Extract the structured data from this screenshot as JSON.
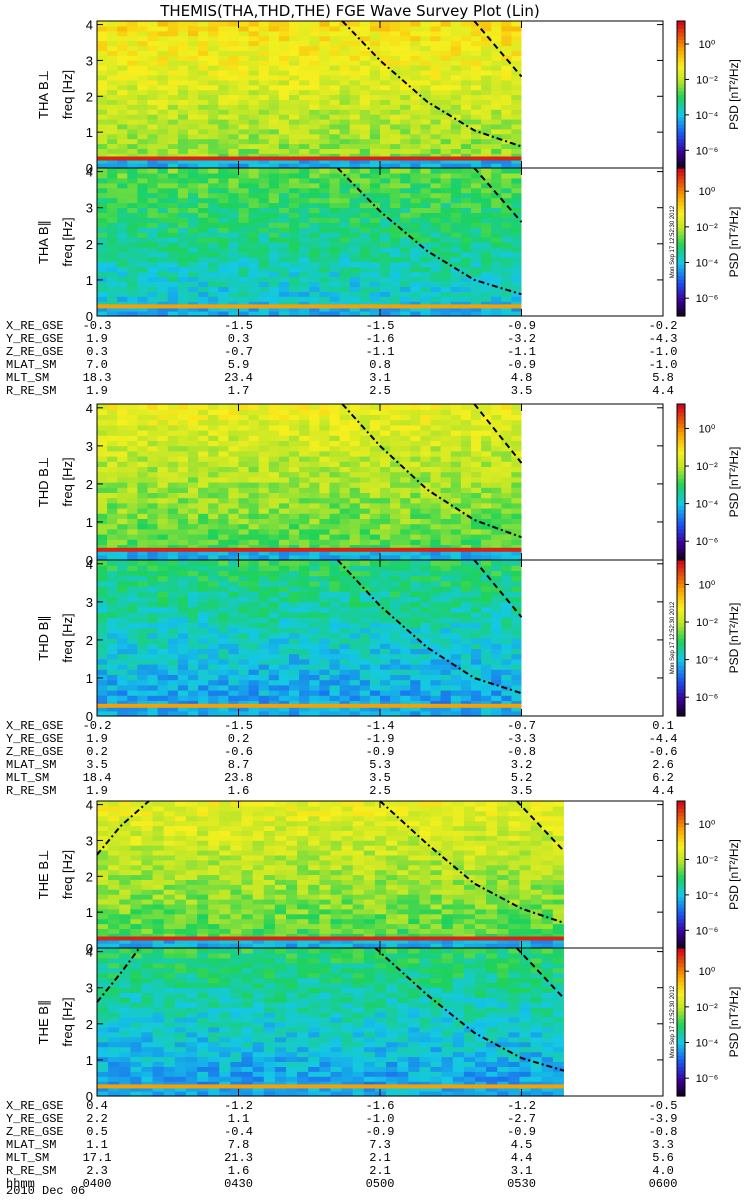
{
  "title": "THEMIS(THA,THD,THE) FGE Wave Survey Plot (Lin)",
  "colors": {
    "low": "#1e5ef0",
    "mid": "#18d060",
    "yellow": "#f4f01c",
    "orange": "#f8a000",
    "high": "#d0101c"
  },
  "timestamp": "Mon Sep 17 12:52:30 2012",
  "chart_data": {
    "type": "heatmap",
    "x_ticks": [
      "0400",
      "0430",
      "0500",
      "0530",
      "0600"
    ],
    "x_tick_values_min": [
      0,
      30,
      60,
      90,
      120
    ],
    "freq_ylim": [
      0,
      4.1
    ],
    "freq_ticks": [
      "0",
      "1",
      "2",
      "3",
      "4"
    ],
    "colorbar": {
      "label": "PSD [nT²/Hz]",
      "ticks": [
        "10⁰",
        "10⁻²",
        "10⁻⁴",
        "10⁻⁶"
      ],
      "tick_log_values": [
        0,
        -2,
        -4,
        -6
      ],
      "log_range": [
        -7,
        1.3
      ]
    },
    "panels": [
      {
        "probe": "THA",
        "component": "B⊥",
        "ylabel": "freq [Hz]",
        "data_end_min": 90,
        "line_band": "bright",
        "level": 0.55,
        "dash_dot_curve": [
          [
            52,
            4.1
          ],
          [
            60,
            3.0
          ],
          [
            70,
            1.85
          ],
          [
            80,
            1.05
          ],
          [
            90,
            0.6
          ]
        ],
        "dashed_curve": [
          [
            80,
            4.1
          ],
          [
            90,
            2.55
          ]
        ]
      },
      {
        "probe": "THA",
        "component": "B∥",
        "ylabel": "freq [Hz]",
        "data_end_min": 90,
        "line_band": "orange",
        "level": 0.35,
        "dash_dot_curve": [
          [
            51,
            4.1
          ],
          [
            60,
            2.9
          ],
          [
            70,
            1.8
          ],
          [
            80,
            1.0
          ],
          [
            90,
            0.6
          ]
        ],
        "dashed_curve": [
          [
            80,
            4.1
          ],
          [
            90,
            2.6
          ]
        ]
      },
      {
        "probe": "THD",
        "component": "B⊥",
        "ylabel": "freq [Hz]",
        "data_end_min": 90,
        "line_band": "bright",
        "level": 0.5,
        "dash_dot_curve": [
          [
            52,
            4.1
          ],
          [
            60,
            3.0
          ],
          [
            70,
            1.85
          ],
          [
            80,
            1.05
          ],
          [
            90,
            0.6
          ]
        ],
        "dashed_curve": [
          [
            80,
            4.1
          ],
          [
            90,
            2.55
          ]
        ]
      },
      {
        "probe": "THD",
        "component": "B∥",
        "ylabel": "freq [Hz]",
        "data_end_min": 90,
        "line_band": "orange",
        "level": 0.3,
        "dash_dot_curve": [
          [
            51,
            4.1
          ],
          [
            60,
            2.9
          ],
          [
            70,
            1.8
          ],
          [
            80,
            1.0
          ],
          [
            90,
            0.6
          ]
        ],
        "dashed_curve": [
          [
            80,
            4.1
          ],
          [
            90,
            2.6
          ]
        ]
      },
      {
        "probe": "THE",
        "component": "B⊥",
        "ylabel": "freq [Hz]",
        "data_end_min": 99,
        "line_band": "bright",
        "level": 0.5,
        "rising_curve": [
          [
            0,
            2.6
          ],
          [
            5,
            3.4
          ],
          [
            11,
            4.1
          ]
        ],
        "dash_dot_curve": [
          [
            60,
            4.1
          ],
          [
            70,
            2.9
          ],
          [
            80,
            1.8
          ],
          [
            90,
            1.1
          ],
          [
            99,
            0.7
          ]
        ],
        "dashed_curve": [
          [
            89,
            4.1
          ],
          [
            99,
            2.7
          ]
        ]
      },
      {
        "probe": "THE",
        "component": "B∥",
        "ylabel": "freq [Hz]",
        "data_end_min": 99,
        "line_band": "orange",
        "level": 0.3,
        "rising_curve": [
          [
            0,
            2.6
          ],
          [
            5,
            3.4
          ],
          [
            9,
            4.1
          ]
        ],
        "dash_dot_curve": [
          [
            59,
            4.1
          ],
          [
            70,
            2.8
          ],
          [
            80,
            1.75
          ],
          [
            90,
            1.05
          ],
          [
            99,
            0.7
          ]
        ],
        "dashed_curve": [
          [
            89,
            4.1
          ],
          [
            99,
            2.7
          ]
        ]
      }
    ]
  },
  "annotations": [
    {
      "labels": [
        "X_RE_GSE",
        "Y_RE_GSE",
        "Z_RE_GSE",
        "MLAT_SM",
        "MLT_SM",
        "R_RE_SM"
      ],
      "columns": [
        [
          "-0.3",
          "1.9",
          "0.3",
          "7.0",
          "18.3",
          "1.9"
        ],
        [
          "-1.5",
          "0.3",
          "-0.7",
          "5.9",
          "23.4",
          "1.7"
        ],
        [
          "-1.5",
          "-1.6",
          "-1.1",
          "0.8",
          "3.1",
          "2.5"
        ],
        [
          "-0.9",
          "-3.2",
          "-1.1",
          "-0.9",
          "4.8",
          "3.5"
        ],
        [
          "-0.2",
          "-4.3",
          "-1.0",
          "-1.0",
          "5.8",
          "4.4"
        ]
      ]
    },
    {
      "labels": [
        "X_RE_GSE",
        "Y_RE_GSE",
        "Z_RE_GSE",
        "MLAT_SM",
        "MLT_SM",
        "R_RE_SM"
      ],
      "columns": [
        [
          "-0.2",
          "1.9",
          "0.2",
          "3.5",
          "18.4",
          "1.9"
        ],
        [
          "-1.5",
          "0.2",
          "-0.6",
          "8.7",
          "23.8",
          "1.6"
        ],
        [
          "-1.4",
          "-1.9",
          "-0.9",
          "5.3",
          "3.5",
          "2.5"
        ],
        [
          "-0.7",
          "-3.3",
          "-0.8",
          "3.2",
          "5.2",
          "3.5"
        ],
        [
          "0.1",
          "-4.4",
          "-0.6",
          "2.6",
          "6.2",
          "4.4"
        ]
      ]
    },
    {
      "labels": [
        "X_RE_GSE",
        "Y_RE_GSE",
        "Z_RE_GSE",
        "MLAT_SM",
        "MLT_SM",
        "R_RE_SM",
        "hhmm"
      ],
      "columns": [
        [
          "0.4",
          "2.2",
          "0.5",
          "1.1",
          "17.1",
          "2.3",
          "0400"
        ],
        [
          "-1.2",
          "1.1",
          "-0.4",
          "7.8",
          "21.3",
          "1.6",
          "0430"
        ],
        [
          "-1.6",
          "-1.0",
          "-0.9",
          "7.3",
          "2.1",
          "2.1",
          "0500"
        ],
        [
          "-1.2",
          "-2.7",
          "-0.9",
          "4.5",
          "4.4",
          "3.1",
          "0530"
        ],
        [
          "-0.5",
          "-3.9",
          "-0.8",
          "3.3",
          "5.6",
          "4.0",
          "0600"
        ]
      ]
    }
  ],
  "date_label": "2010 Dec 06"
}
